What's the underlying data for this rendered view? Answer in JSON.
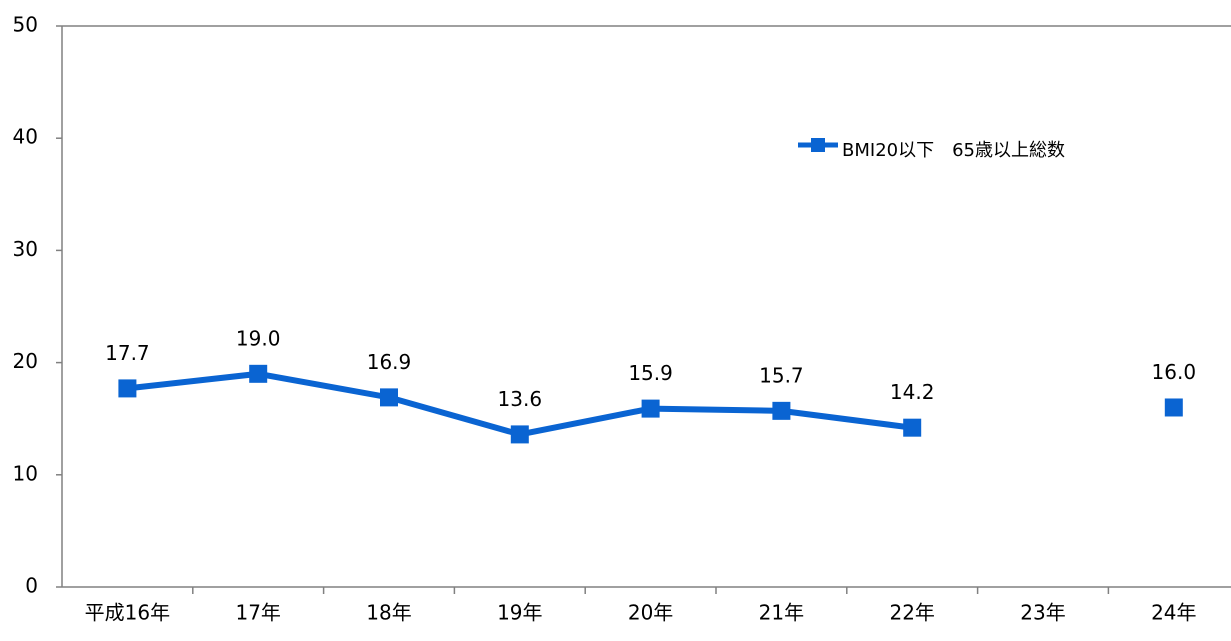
{
  "chart_data": {
    "type": "line",
    "categories": [
      "平成16年",
      "17年",
      "18年",
      "19年",
      "20年",
      "21年",
      "22年",
      "23年",
      "24年"
    ],
    "series": [
      {
        "name": "BMI20以下　65歳以上総数",
        "color": "#0a64d2",
        "values": [
          17.7,
          19.0,
          16.9,
          13.6,
          15.9,
          15.7,
          14.2,
          null,
          16.0
        ],
        "value_labels": [
          "17.7",
          "19.0",
          "16.9",
          "13.6",
          "15.9",
          "15.7",
          "14.2",
          null,
          "16.0"
        ]
      }
    ],
    "ylim": [
      0,
      50
    ],
    "yticks": [
      0,
      10,
      20,
      30,
      40,
      50
    ],
    "grid": false,
    "legend": "upper right"
  }
}
